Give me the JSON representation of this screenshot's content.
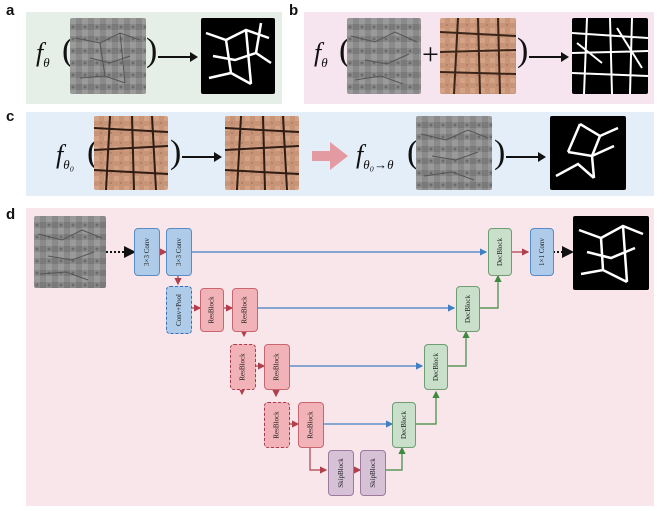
{
  "panels": {
    "a": {
      "letter": "a"
    },
    "b": {
      "letter": "b"
    },
    "c": {
      "letter": "c"
    },
    "d": {
      "letter": "d"
    }
  },
  "math": {
    "f_theta": "f",
    "theta_sub": "θ",
    "theta0_sub": "θ₀",
    "theta0_to_theta_sub": "θ₀→θ",
    "open_paren": "(",
    "close_paren": ")",
    "plus": "+"
  },
  "blocks": {
    "conv3_a": "3×3 Conv",
    "conv3_b": "3×3 Conv",
    "conv_pool": "Conv+Pool",
    "res_1a": "ResBlock",
    "res_1b": "ResBlock",
    "res_2a": "ResBlock",
    "res_2b": "ResBlock",
    "res_3a": "ResBlock",
    "res_3b": "ResBlock",
    "skip_1": "SkipBlock",
    "skip_2": "SkipBlock",
    "dec_1": "DecBlock",
    "dec_2": "DecBlock",
    "dec_3": "DecBlock",
    "dec_4": "DecBlock",
    "conv1": "1×1 Conv"
  },
  "colors": {
    "panel_a_bg": "#e6efe7",
    "panel_b_bg": "#f6e4ee",
    "panel_c_bg": "#e4eef9",
    "panel_d_bg": "#f9e6ea",
    "blue_arrow": "#3f7fc2",
    "red_arrow": "#b0404c",
    "green_arrow": "#3d8a3f",
    "salmon_arrow": "#e39aa0"
  },
  "icons": [
    "gray-crack-image",
    "binary-mask-image",
    "brown-crack-image"
  ]
}
